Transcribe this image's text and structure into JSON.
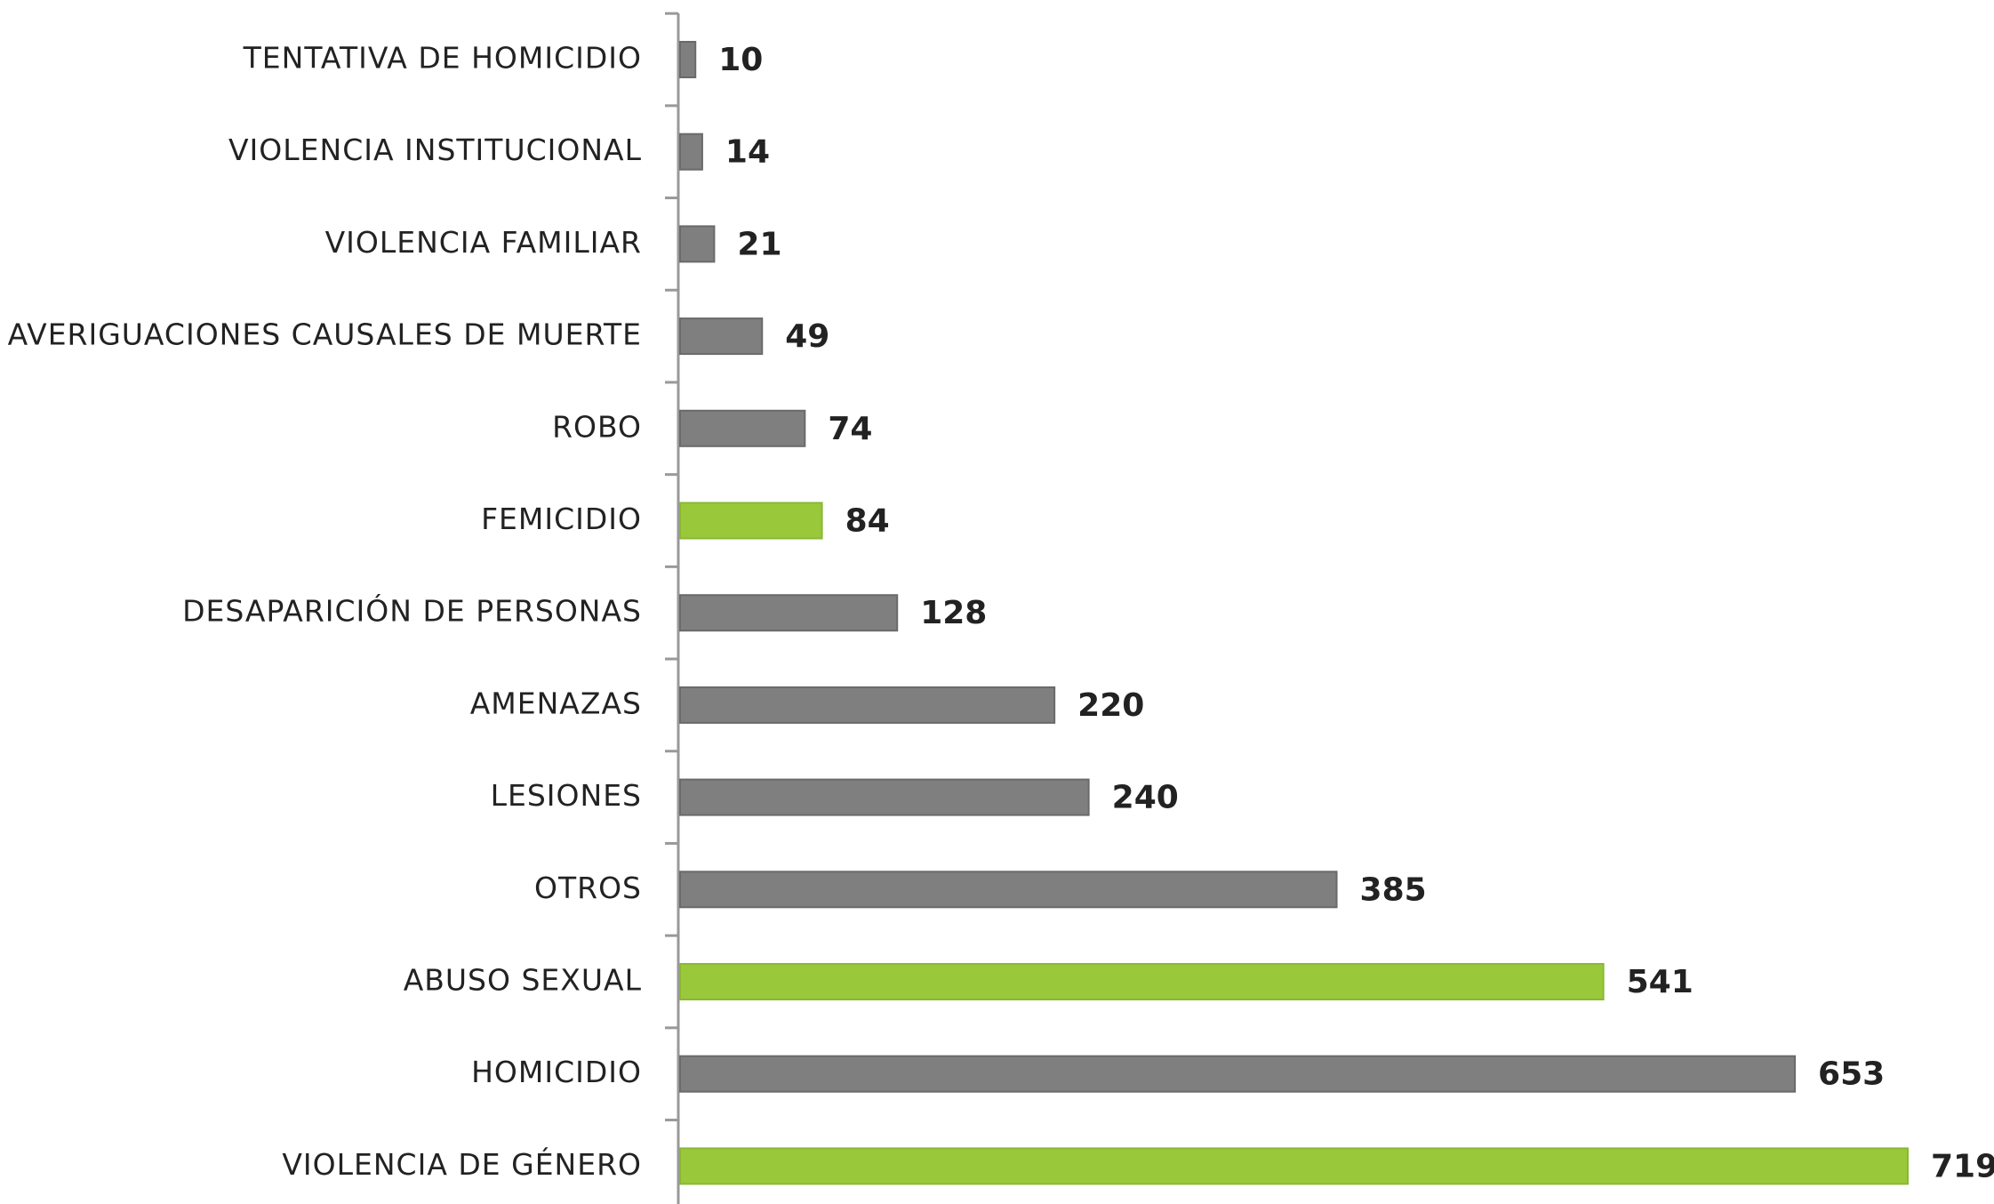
{
  "chart_data": {
    "type": "bar",
    "orientation": "horizontal",
    "categories": [
      "TENTATIVA DE HOMICIDIO",
      "VIOLENCIA INSTITUCIONAL",
      "VIOLENCIA FAMILIAR",
      "AVERIGUACIONES CAUSALES DE MUERTE",
      "ROBO",
      "FEMICIDIO",
      "DESAPARICIÓN DE PERSONAS",
      "AMENAZAS",
      "LESIONES",
      "OTROS",
      "ABUSO SEXUAL",
      "HOMICIDIO",
      "VIOLENCIA DE GÉNERO"
    ],
    "values": [
      10,
      14,
      21,
      49,
      74,
      84,
      128,
      220,
      240,
      385,
      541,
      653,
      719
    ],
    "colors": [
      "#7f7f7f",
      "#7f7f7f",
      "#7f7f7f",
      "#7f7f7f",
      "#7f7f7f",
      "#99c93a",
      "#7f7f7f",
      "#7f7f7f",
      "#7f7f7f",
      "#7f7f7f",
      "#99c93a",
      "#7f7f7f",
      "#99c93a"
    ]
  }
}
